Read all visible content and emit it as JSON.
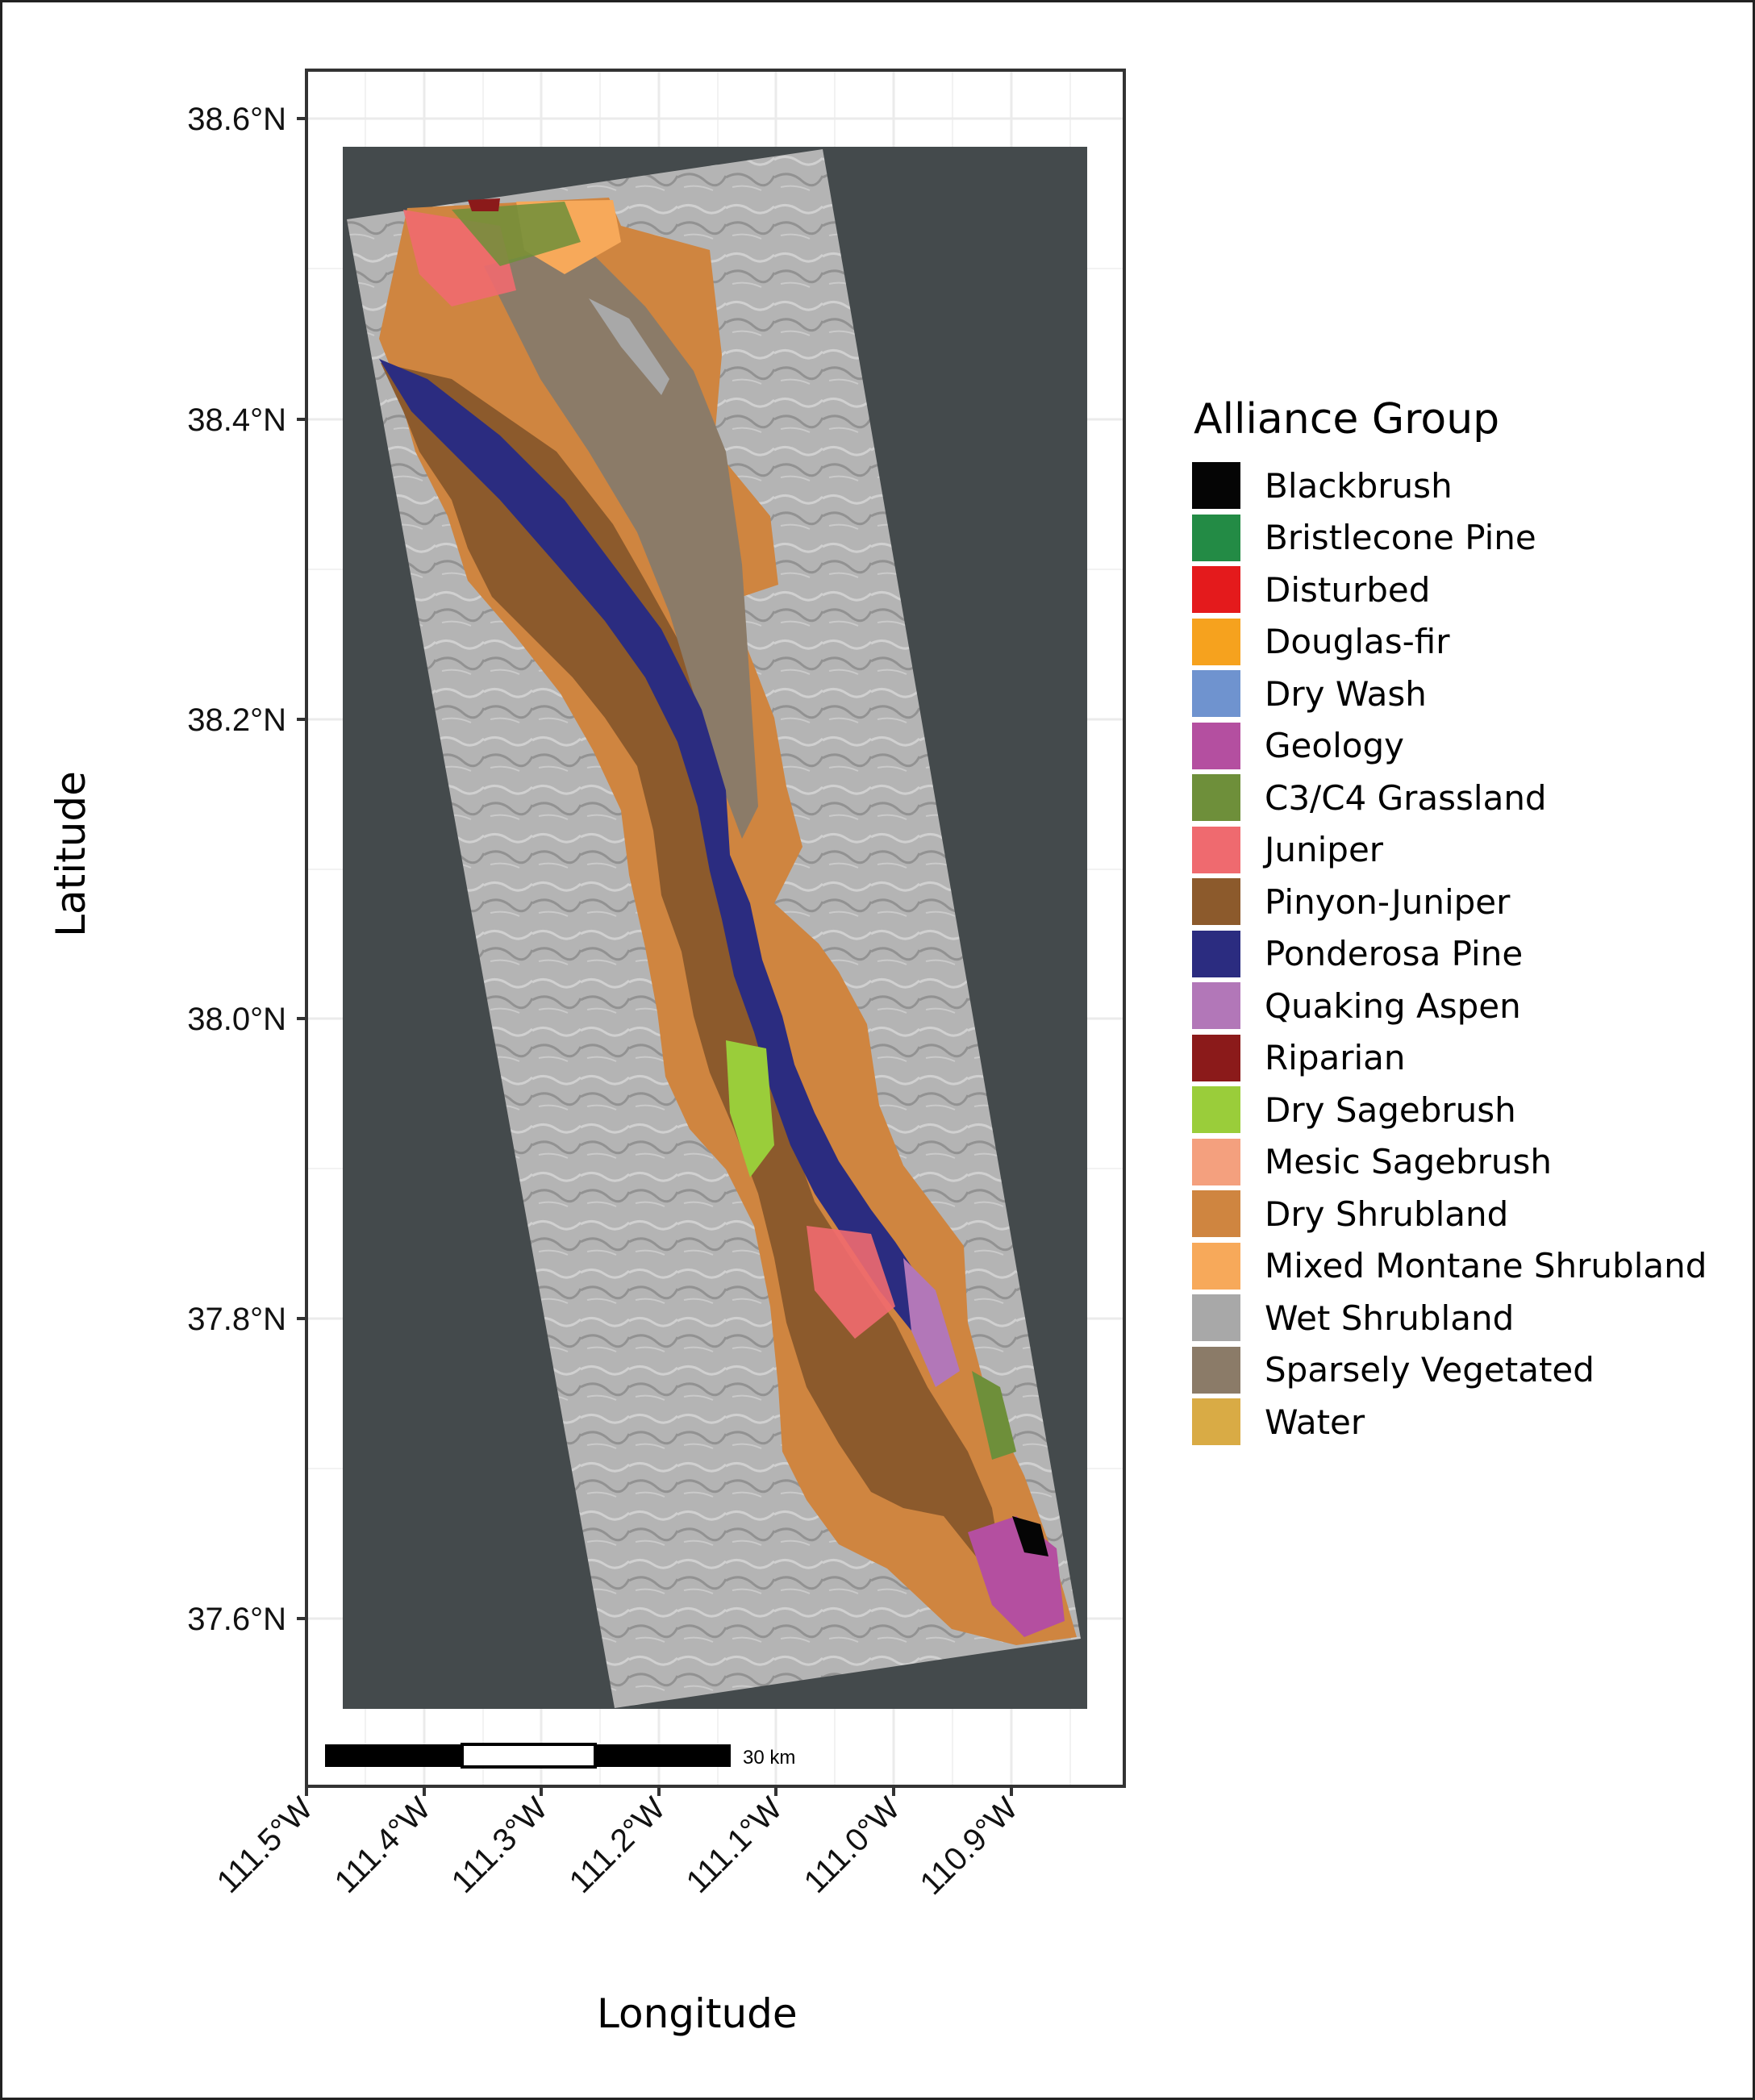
{
  "axes": {
    "x_title": "Longitude",
    "y_title": "Latitude",
    "x_ticks": [
      "111.5°W",
      "111.4°W",
      "111.3°W",
      "111.2°W",
      "111.1°W",
      "111.0°W",
      "110.9°W"
    ],
    "y_ticks": [
      "38.6°N",
      "38.4°N",
      "38.2°N",
      "38.0°N",
      "37.8°N",
      "37.6°N"
    ]
  },
  "scale_bar": {
    "label": "30 km"
  },
  "legend": {
    "title": "Alliance Group",
    "items": [
      {
        "label": "Blackbrush",
        "color": "#050505"
      },
      {
        "label": "Bristlecone Pine",
        "color": "#238b45"
      },
      {
        "label": "Disturbed",
        "color": "#e41a1c"
      },
      {
        "label": "Douglas-fir",
        "color": "#f6a21e"
      },
      {
        "label": "Dry Wash",
        "color": "#6f93cf"
      },
      {
        "label": "Geology",
        "color": "#b44fa0"
      },
      {
        "label": "C3/C4 Grassland",
        "color": "#6e8f3a"
      },
      {
        "label": "Juniper",
        "color": "#ef6a6f"
      },
      {
        "label": "Pinyon-Juniper",
        "color": "#8c5a2c"
      },
      {
        "label": "Ponderosa Pine",
        "color": "#2b2c80"
      },
      {
        "label": "Quaking Aspen",
        "color": "#b277b8"
      },
      {
        "label": "Riparian",
        "color": "#8b1a1a"
      },
      {
        "label": "Dry Sagebrush",
        "color": "#9acd3a"
      },
      {
        "label": "Mesic Sagebrush",
        "color": "#f4a07e"
      },
      {
        "label": "Dry Shrubland",
        "color": "#cf8540"
      },
      {
        "label": "Mixed Montane Shrubland",
        "color": "#f7a95a"
      },
      {
        "label": "Wet Shrubland",
        "color": "#a8a8a8"
      },
      {
        "label": "Sparsely Vegetated",
        "color": "#8b7b68"
      },
      {
        "label": "Water",
        "color": "#d9ab45"
      }
    ]
  },
  "colors": {
    "panel_background": "#ffffff",
    "grid": "#ebebeb",
    "map_background": "#444a4c",
    "hillshade": "#b4b4b4"
  }
}
